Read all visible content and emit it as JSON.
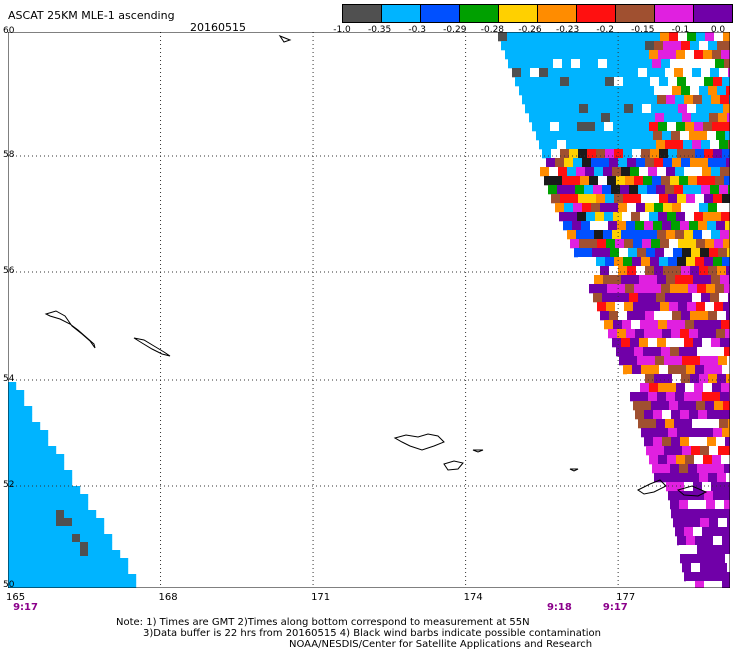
{
  "header": {
    "title": "ASCAT 25KM MLE-1 ascending",
    "date": "20160515"
  },
  "legend": {
    "colors": [
      "#505050",
      "#00b4ff",
      "#0050ff",
      "#00a000",
      "#ffd000",
      "#ff8c00",
      "#ff1010",
      "#a05030",
      "#e020e0",
      "#7000a8"
    ],
    "ticks": [
      "-1.0",
      "-0.35",
      "-0.3",
      "-0.29",
      "-0.28",
      "-0.26",
      "-0.23",
      "-0.2",
      "-0.15",
      "-0.1",
      "0.0"
    ]
  },
  "axes": {
    "lon_labels": [
      "165",
      "168",
      "171",
      "174",
      "177"
    ],
    "lat_labels": [
      "60",
      "58",
      "56",
      "54",
      "52",
      "50"
    ],
    "lon_range": [
      165,
      179.2
    ],
    "lat_range": [
      50,
      60
    ]
  },
  "times": [
    {
      "label": "9:17",
      "lon": 165.1
    },
    {
      "label": "9:18",
      "lon": 175.6
    },
    {
      "label": "9:17",
      "lon": 176.7
    }
  ],
  "notes": {
    "line1": "Note: 1) Times are GMT 2)Times along bottom correspond to measurement at 55N",
    "line2": "3)Data buffer is 22 hrs from 20160515 4) Black wind barbs indicate possible contamination",
    "line3": "NOAA/NESDIS/Center for Satellite Applications and Research"
  }
}
